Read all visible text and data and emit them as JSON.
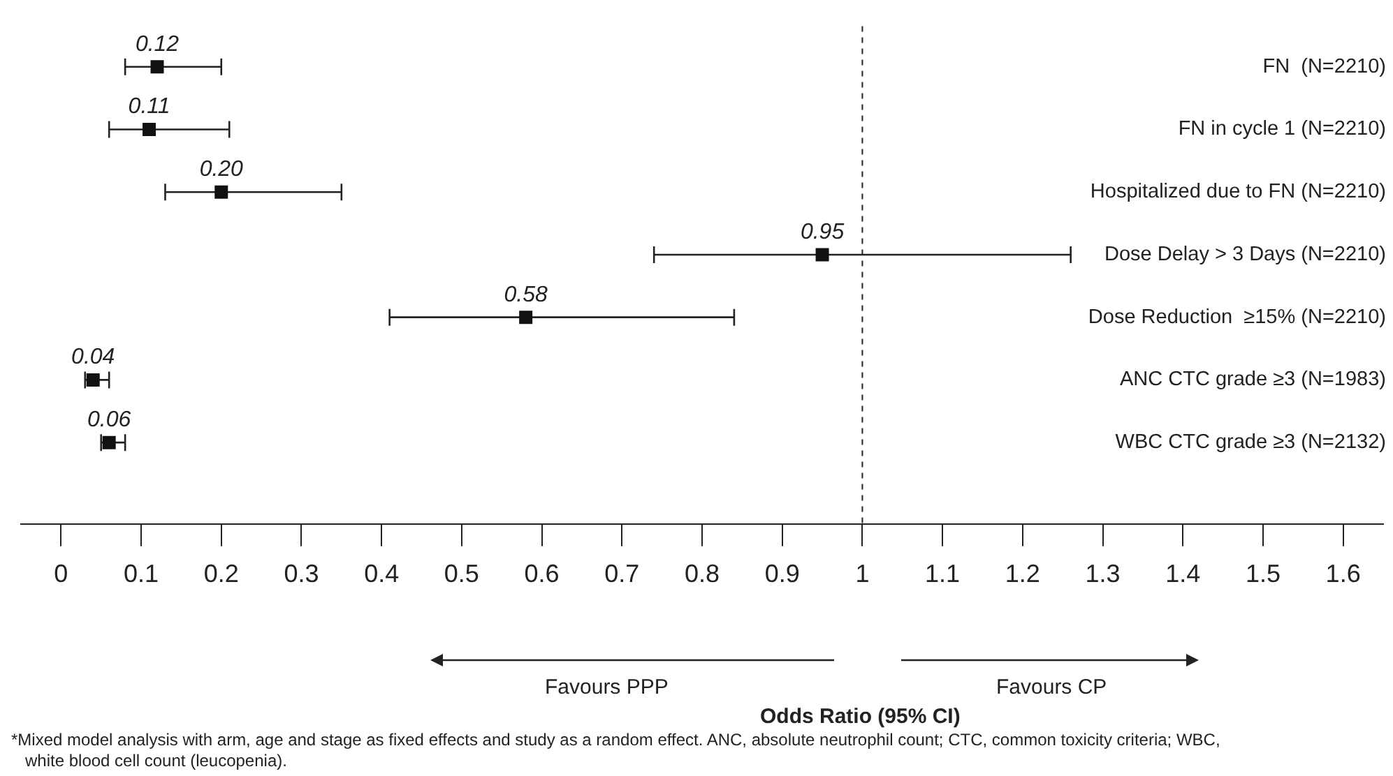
{
  "chart_data": {
    "type": "scatter",
    "orientation": "horizontal",
    "categories": [
      "FN  (N=2210)",
      "FN in cycle 1 (N=2210)",
      "Hospitalized due to FN (N=2210)",
      "Dose Delay > 3 Days (N=2210)",
      "Dose Reduction  ≥15% (N=2210)",
      "ANC CTC grade ≥3 (N=1983)",
      "WBC CTC grade ≥3 (N=2132)"
    ],
    "values": [
      0.12,
      0.11,
      0.2,
      0.95,
      0.58,
      0.04,
      0.06
    ],
    "errors": [
      [
        0.08,
        0.2
      ],
      [
        0.06,
        0.21
      ],
      [
        0.13,
        0.35
      ],
      [
        0.74,
        1.26
      ],
      [
        0.41,
        0.84
      ],
      [
        0.03,
        0.06
      ],
      [
        0.05,
        0.08
      ]
    ],
    "value_labels": [
      "0.12",
      "0.11",
      "0.20",
      "0.95",
      "0.58",
      "0.04",
      "0.06"
    ],
    "color": "#111111",
    "marker": "square",
    "grid": false,
    "legend": false,
    "xlim": [
      -0.05,
      1.65
    ],
    "xticks": [
      0,
      0.1,
      0.2,
      0.3,
      0.4,
      0.5,
      0.6,
      0.7,
      0.8,
      0.9,
      1,
      1.1,
      1.2,
      1.3,
      1.4,
      1.5,
      1.6
    ],
    "ref_lines": [
      {
        "axis": "x",
        "value": 1,
        "line_style": "dashed"
      }
    ],
    "annotations": [
      "Favours PPP",
      "Favours CP",
      "Odds Ratio (95% CI)",
      "*Mixed model analysis with arm, age and stage as fixed effects and study as a random effect. ANC, absolute neutrophil count; CTC, common toxicity criteria; WBC, white blood cell count (leucopenia)."
    ]
  }
}
